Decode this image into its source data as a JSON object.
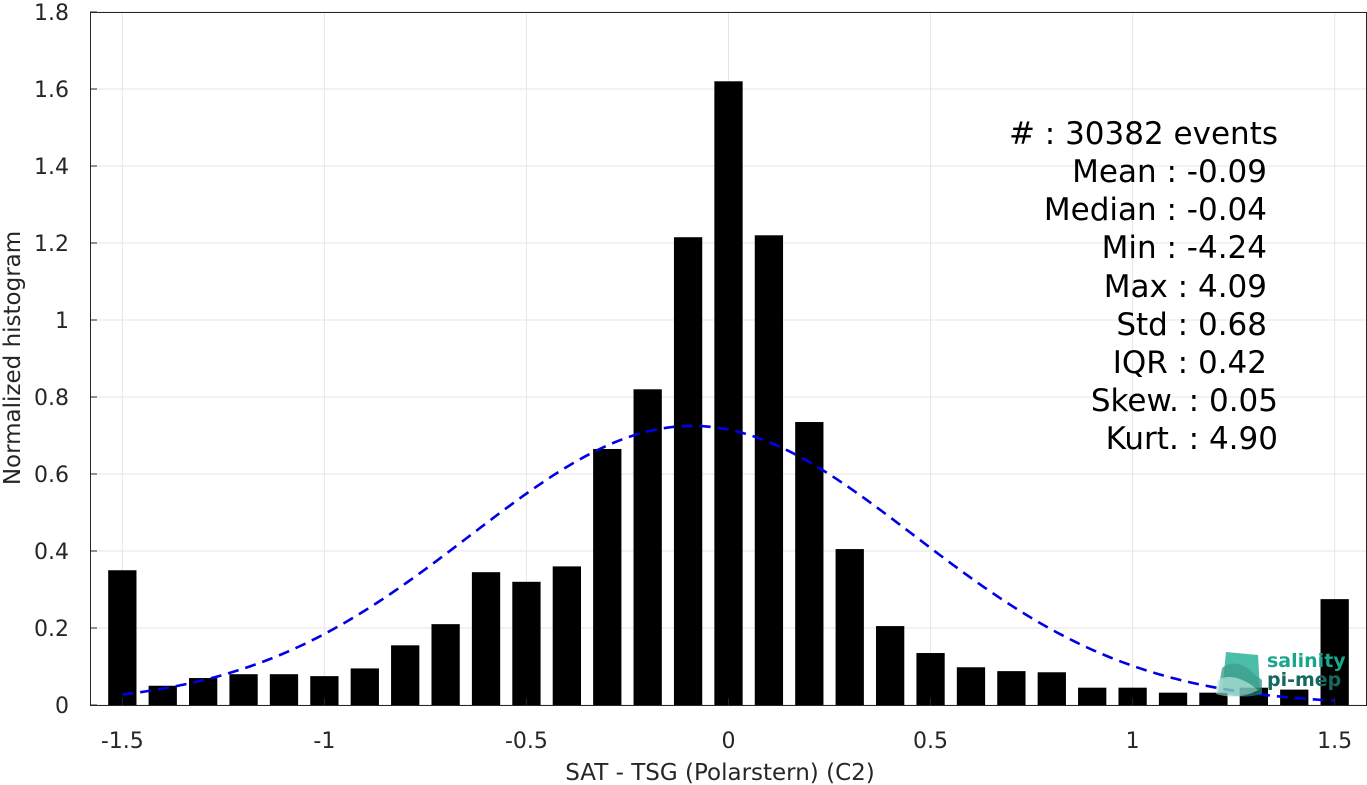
{
  "chart_data": {
    "type": "bar",
    "xlabel": "SAT - TSG (Polarstern) (C2)",
    "ylabel": "Normalized histogram",
    "xlim": [
      -1.58,
      1.58
    ],
    "ylim": [
      0,
      1.8
    ],
    "x_ticks": [
      -1.5,
      -1,
      -0.5,
      0,
      0.5,
      1,
      1.5
    ],
    "x_tick_labels": [
      "-1.5",
      "-1",
      "-0.5",
      "0",
      "0.5",
      "1",
      "1.5"
    ],
    "y_ticks": [
      0,
      0.2,
      0.4,
      0.6,
      0.8,
      1,
      1.2,
      1.4,
      1.6,
      1.8
    ],
    "y_tick_labels": [
      "0",
      "0.2",
      "0.4",
      "0.6",
      "0.8",
      "1",
      "1.2",
      "1.4",
      "1.6",
      "1.8"
    ],
    "grid": true,
    "bar_color": "#000000",
    "bin_width": 0.1,
    "bins": {
      "x": [
        -1.5,
        -1.4,
        -1.3,
        -1.2,
        -1.1,
        -1.0,
        -0.9,
        -0.8,
        -0.7,
        -0.6,
        -0.5,
        -0.4,
        -0.3,
        -0.2,
        -0.1,
        0.0,
        0.1,
        0.2,
        0.3,
        0.4,
        0.5,
        0.6,
        0.7,
        0.8,
        0.9,
        1.0,
        1.1,
        1.2,
        1.3,
        1.4,
        1.5
      ],
      "values": [
        0.35,
        0.05,
        0.07,
        0.08,
        0.08,
        0.075,
        0.095,
        0.155,
        0.21,
        0.345,
        0.32,
        0.36,
        0.665,
        0.82,
        1.215,
        1.62,
        1.22,
        0.735,
        0.405,
        0.205,
        0.135,
        0.098,
        0.088,
        0.085,
        0.045,
        0.045,
        0.032,
        0.032,
        0.045,
        0.04,
        0.275
      ]
    },
    "fit_curve": {
      "style": "dashed",
      "color": "#0000e6",
      "mean": -0.09,
      "std": 0.55,
      "peak": 0.725,
      "x_range": [
        -1.5,
        1.5
      ]
    }
  },
  "stats": {
    "lines": [
      "#  : 30382 events",
      "Mean : -0.09",
      "Median : -0.04",
      "Min : -4.24",
      "Max : 4.09",
      "Std : 0.68",
      "IQR : 0.42",
      "Skew. : 0.05",
      "Kurt. : 4.90"
    ]
  },
  "logo": {
    "line1": "salinity",
    "line2": "pi-mep",
    "color1": "#1aa58c",
    "color2": "#16695e"
  }
}
